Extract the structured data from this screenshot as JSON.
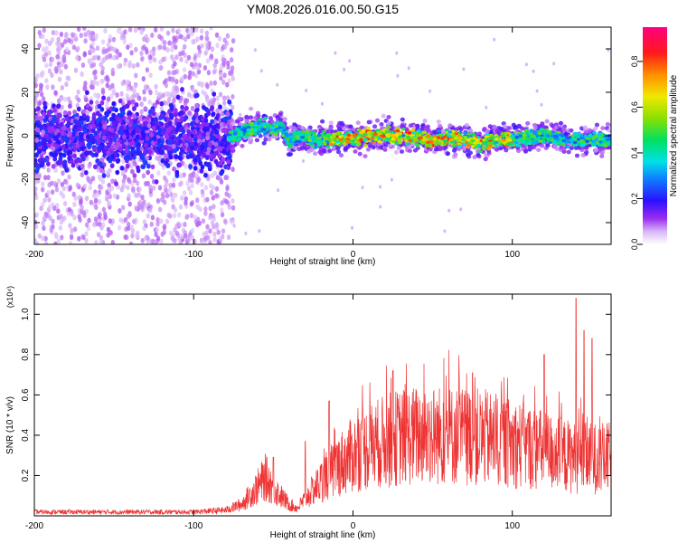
{
  "title": "YM08.2026.016.00.50.G15",
  "chart_data": [
    {
      "type": "heatmap",
      "xlabel": "Height of straight line (km)",
      "ylabel": "Frequency (Hz)",
      "xlim": [
        -200,
        162
      ],
      "ylim": [
        -50,
        50
      ],
      "xticks": [
        -200,
        -100,
        0,
        100
      ],
      "yticks": [
        -40,
        -20,
        0,
        20,
        40
      ],
      "colorbar": {
        "label": "Normalized spectral amplitude",
        "range": [
          0,
          0.95
        ],
        "ticks": [
          0.0,
          0.2,
          0.4,
          0.6,
          0.8
        ]
      },
      "ridge": {
        "x": [
          -200,
          -150,
          -100,
          -85,
          -75,
          -65,
          -55,
          -50,
          -45,
          -40,
          -35,
          -30,
          -20,
          -10,
          0,
          10,
          20,
          30,
          40,
          50,
          60,
          70,
          80,
          90,
          100,
          110,
          120,
          130,
          140,
          150,
          162
        ],
        "freq": [
          0,
          0,
          0,
          -2,
          0,
          3,
          4,
          2,
          5,
          -3,
          0,
          -1,
          -2,
          -1,
          -1,
          0,
          0,
          0,
          -1,
          -2,
          -1,
          -2,
          -3,
          -2,
          -1,
          -1,
          0,
          -1,
          -2,
          -2,
          -2
        ]
      }
    },
    {
      "type": "line",
      "xlabel": "Height of straight line (km)",
      "ylabel": "SNR (10 * v/v)",
      "yunit": "(x10⁴)",
      "xlim": [
        -200,
        162
      ],
      "ylim": [
        0,
        1.1
      ],
      "xticks": [
        -200,
        -100,
        0,
        100
      ],
      "yticks": [
        0.2,
        0.4,
        0.6,
        0.8,
        1.0
      ],
      "series": [
        {
          "color": "#ee3333",
          "envelope_x": [
            -200,
            -150,
            -100,
            -80,
            -70,
            -60,
            -55,
            -50,
            -45,
            -40,
            -35,
            -30,
            -20,
            -10,
            0,
            10,
            20,
            30,
            40,
            60,
            80,
            100,
            120,
            130,
            140,
            150,
            162
          ],
          "envelope_y": [
            0.02,
            0.02,
            0.02,
            0.03,
            0.06,
            0.15,
            0.2,
            0.15,
            0.1,
            0.06,
            0.04,
            0.09,
            0.18,
            0.26,
            0.32,
            0.36,
            0.39,
            0.41,
            0.42,
            0.42,
            0.41,
            0.38,
            0.34,
            0.32,
            0.3,
            0.3,
            0.3
          ],
          "peaks": [
            [
              -50,
              0.29
            ],
            [
              -30,
              0.37
            ],
            [
              -15,
              0.57
            ],
            [
              25,
              0.72
            ],
            [
              75,
              0.71
            ],
            [
              120,
              0.8
            ],
            [
              140,
              1.08
            ],
            [
              145,
              0.92
            ],
            [
              150,
              0.88
            ]
          ]
        }
      ]
    }
  ]
}
